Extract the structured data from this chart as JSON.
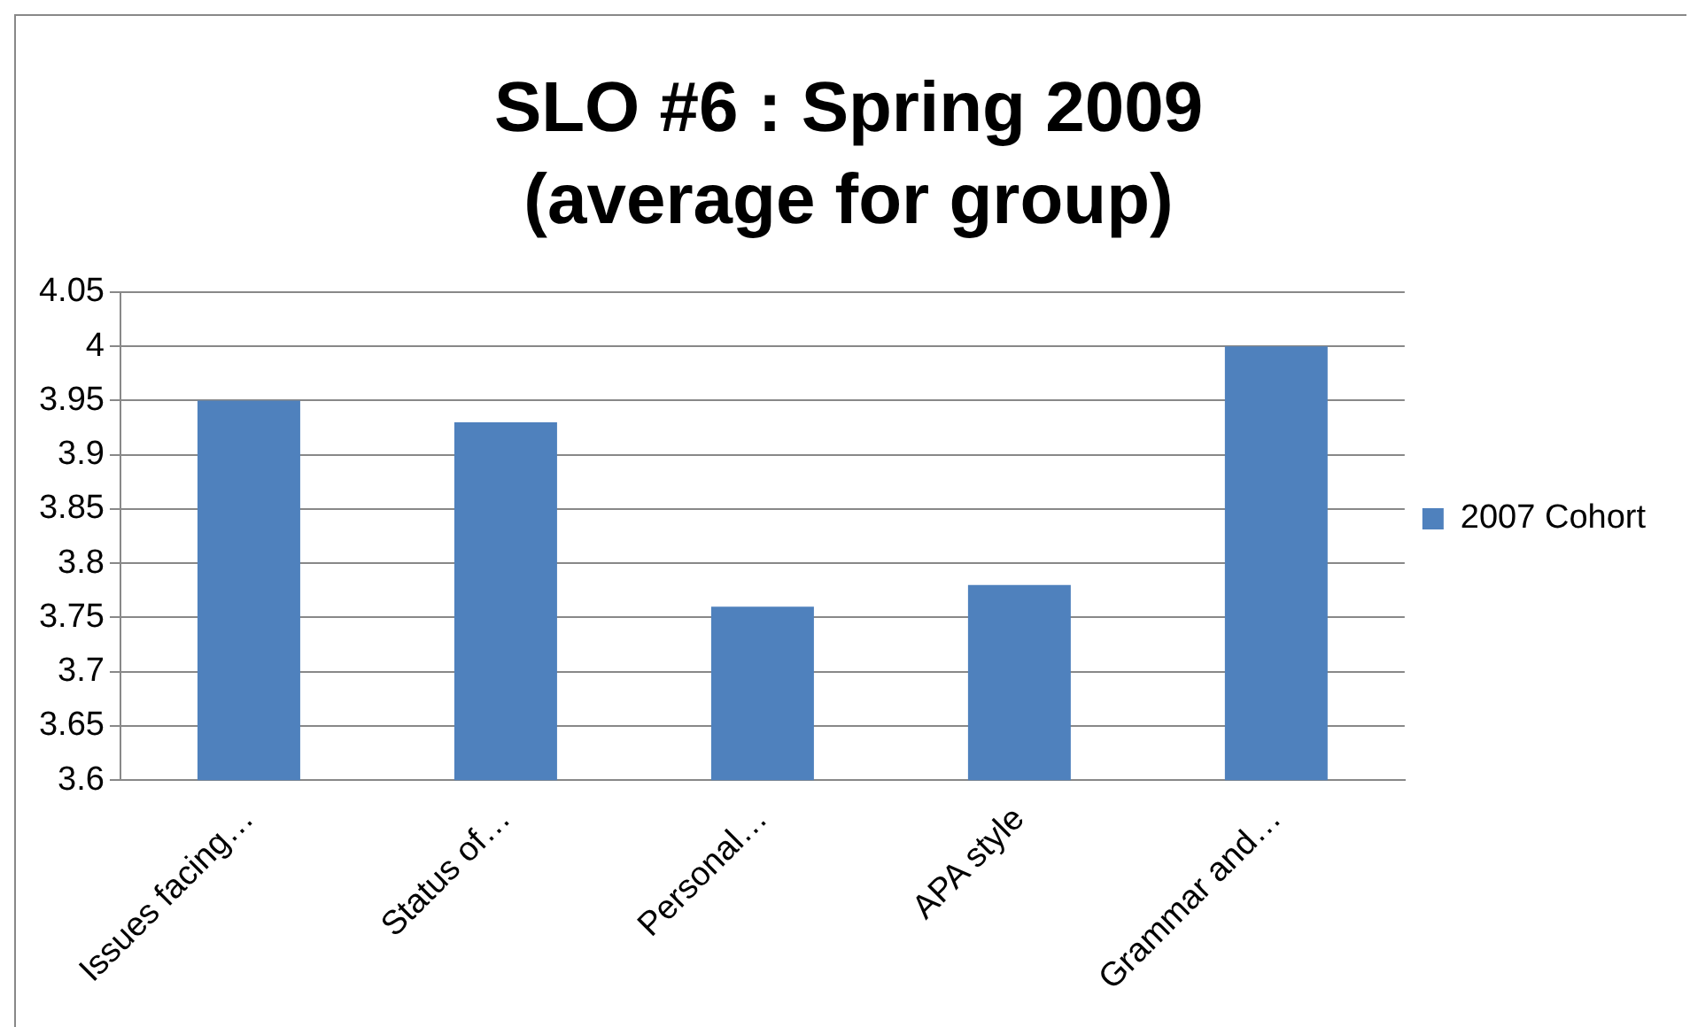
{
  "chart_data": {
    "type": "bar",
    "title": "SLO #6 : Spring 2009",
    "subtitle": "(average for group)",
    "categories": [
      "Issues facing…",
      "Status of…",
      "Personal…",
      "APA style",
      "Grammar and…"
    ],
    "series": [
      {
        "name": "2007 Cohort",
        "color": "#4f81bd",
        "values": [
          3.95,
          3.93,
          3.76,
          3.78,
          4.0
        ]
      }
    ],
    "ylim": [
      3.6,
      4.05
    ],
    "yticks": [
      3.6,
      3.65,
      3.7,
      3.75,
      3.8,
      3.85,
      3.9,
      3.95,
      4,
      4.05
    ],
    "grid": "y",
    "legend": "right"
  }
}
